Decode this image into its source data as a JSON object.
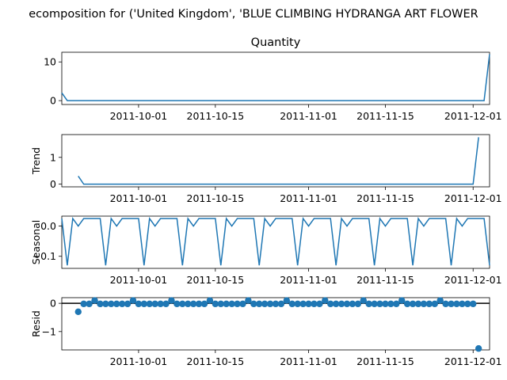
{
  "figure": {
    "title": "ecomposition for ('United Kingdom', 'BLUE CLIMBING HYDRANGA ART FLOWER"
  },
  "chart_data": [
    {
      "type": "line",
      "panel": "observed",
      "title": "Quantity",
      "ylabel": "",
      "x_ticks": [
        "2011-10-01",
        "2011-10-15",
        "2011-11-01",
        "2011-11-15",
        "2011-12-01"
      ],
      "y_ticks": [
        "0",
        "10"
      ],
      "ylim": [
        -1,
        12.5
      ],
      "x": [
        "2011-09-17",
        "2011-09-18",
        "2011-12-03",
        "2011-12-04"
      ],
      "values": [
        2,
        0,
        0,
        12
      ]
    },
    {
      "type": "line",
      "panel": "trend",
      "title": "",
      "ylabel": "Trend",
      "x_ticks": [
        "2011-10-01",
        "2011-10-15",
        "2011-11-01",
        "2011-11-15",
        "2011-12-01"
      ],
      "y_ticks": [
        "0",
        "1"
      ],
      "ylim": [
        -0.1,
        1.85
      ],
      "x": [
        "2011-09-20",
        "2011-09-21",
        "2011-12-01",
        "2011-12-02"
      ],
      "values": [
        0.3,
        0,
        0,
        1.75
      ]
    },
    {
      "type": "line",
      "panel": "seasonal",
      "title": "",
      "ylabel": "Seasonal",
      "x_ticks": [
        "2011-10-01",
        "2011-10-15",
        "2011-11-01",
        "2011-11-15",
        "2011-12-01"
      ],
      "y_ticks": [
        "0.0",
        "−0.1"
      ],
      "ylim": [
        -0.14,
        0.033
      ],
      "period_pattern": [
        0.025,
        -0.13,
        0.025,
        0.0,
        0.025,
        0.025,
        0.025
      ],
      "pattern_start": "2011-09-17",
      "pattern_end": "2011-12-04"
    },
    {
      "type": "scatter",
      "panel": "resid",
      "title": "",
      "ylabel": "Resid",
      "x_ticks": [
        "2011-10-01",
        "2011-10-15",
        "2011-11-01",
        "2011-11-15",
        "2011-12-01"
      ],
      "y_ticks": [
        "0",
        "−1"
      ],
      "ylim": [
        -1.65,
        0.2
      ],
      "baseline": 0,
      "regular_value": -0.02,
      "regular_start": "2011-09-21",
      "regular_end": "2011-12-01",
      "spike_value": 0.1,
      "spike_period_days": 7,
      "spike_start": "2011-09-23",
      "points": [
        {
          "x": "2011-09-20",
          "y": -0.3
        },
        {
          "x": "2011-12-02",
          "y": -1.6
        }
      ]
    }
  ]
}
